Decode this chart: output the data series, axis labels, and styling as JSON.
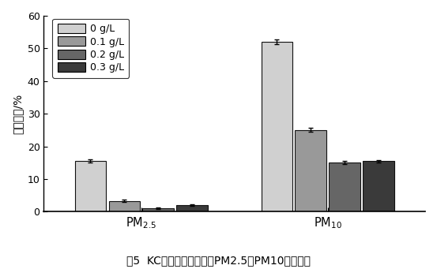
{
  "groups": [
    "PM$_{2.5}$",
    "PM$_{10}$"
  ],
  "series_labels": [
    "0 g/L",
    "0.1 g/L",
    "0.2 g/L",
    "0.3 g/L"
  ],
  "colors": [
    "#d0d0d0",
    "#999999",
    "#666666",
    "#3a3a3a"
  ],
  "values": [
    [
      15.5,
      3.3,
      1.0,
      2.0
    ],
    [
      52.0,
      25.0,
      15.0,
      15.5
    ]
  ],
  "errors": [
    [
      0.5,
      0.4,
      0.25,
      0.3
    ],
    [
      0.7,
      0.6,
      0.5,
      0.4
    ]
  ],
  "ylabel": "体积分数/%",
  "ylim": [
    0,
    60
  ],
  "yticks": [
    0,
    10,
    20,
    30,
    40,
    50,
    60
  ],
  "caption": "图5  KC的含量对飞灰中的PM2.5、PM10含量影响",
  "bar_width": 0.08,
  "group_centers": [
    0.28,
    0.72
  ],
  "xlim": [
    0.05,
    0.95
  ]
}
